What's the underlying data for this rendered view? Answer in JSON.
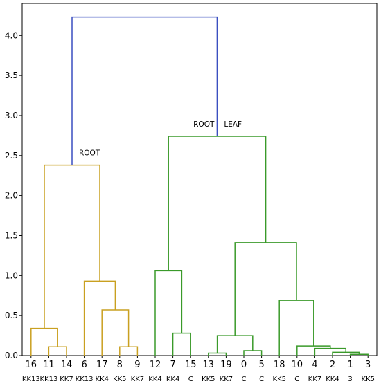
{
  "chart_data": {
    "type": "dendrogram",
    "ylim": [
      0,
      4.4
    ],
    "yticks": [
      "0.0",
      "0.5",
      "1.0",
      "1.5",
      "2.0",
      "2.5",
      "3.0",
      "3.5",
      "4.0"
    ],
    "leaves": [
      {
        "id": "16",
        "group": "KK13"
      },
      {
        "id": "11",
        "group": "KK13"
      },
      {
        "id": "14",
        "group": "KK7"
      },
      {
        "id": "6",
        "group": "KK13"
      },
      {
        "id": "17",
        "group": "KK4"
      },
      {
        "id": "8",
        "group": "KK5"
      },
      {
        "id": "9",
        "group": "KK7"
      },
      {
        "id": "12",
        "group": "KK4"
      },
      {
        "id": "7",
        "group": "KK4"
      },
      {
        "id": "15",
        "group": "C"
      },
      {
        "id": "13",
        "group": "KK5"
      },
      {
        "id": "19",
        "group": "KK7"
      },
      {
        "id": "0",
        "group": "C"
      },
      {
        "id": "5",
        "group": "C"
      },
      {
        "id": "18",
        "group": "KK5"
      },
      {
        "id": "10",
        "group": "C"
      },
      {
        "id": "4",
        "group": "KK7"
      },
      {
        "id": "2",
        "group": "KK4"
      },
      {
        "id": "1",
        "group": "3"
      },
      {
        "id": "3",
        "group": "KK5"
      }
    ],
    "colors": {
      "cluster_left": "#c9a020",
      "cluster_right": "#3a9a2a",
      "root_link": "#3a4fc0"
    },
    "links": [
      {
        "l": 1,
        "r": 2,
        "h": 0.11,
        "c": "cluster_left"
      },
      {
        "l": 0,
        "r": 1.5,
        "h": 0.34,
        "c": "cluster_left"
      },
      {
        "l": 5,
        "r": 6,
        "h": 0.11,
        "c": "cluster_left"
      },
      {
        "l": 4,
        "r": 5.5,
        "h": 0.57,
        "c": "cluster_left"
      },
      {
        "l": 3,
        "r": 4.75,
        "h": 0.93,
        "c": "cluster_left"
      },
      {
        "l": 0.75,
        "r": 3.875,
        "h": 2.38,
        "c": "cluster_left"
      },
      {
        "l": 8,
        "r": 9,
        "h": 0.28,
        "c": "cluster_right"
      },
      {
        "l": 7,
        "r": 8.5,
        "h": 1.06,
        "c": "cluster_right"
      },
      {
        "l": 10,
        "r": 11,
        "h": 0.03,
        "c": "cluster_right"
      },
      {
        "l": 12,
        "r": 13,
        "h": 0.06,
        "c": "cluster_right"
      },
      {
        "l": 10.5,
        "r": 12.5,
        "h": 0.25,
        "c": "cluster_right"
      },
      {
        "l": 18,
        "r": 19,
        "h": 0.015,
        "c": "cluster_right"
      },
      {
        "l": 17,
        "r": 18.5,
        "h": 0.04,
        "c": "cluster_right"
      },
      {
        "l": 16,
        "r": 17.75,
        "h": 0.09,
        "c": "cluster_right"
      },
      {
        "l": 15,
        "r": 16.875,
        "h": 0.12,
        "c": "cluster_right"
      },
      {
        "l": 14,
        "r": 15.9375,
        "h": 0.69,
        "c": "cluster_right"
      },
      {
        "l": 11.5,
        "r": 14.96875,
        "h": 1.41,
        "c": "cluster_right"
      },
      {
        "l": 7.75,
        "r": 13.234375,
        "h": 2.74,
        "c": "cluster_right"
      },
      {
        "l": 2.3125,
        "r": 10.4921875,
        "h": 4.23,
        "c": "root_link"
      }
    ],
    "annotations": [
      {
        "text": "ROOT",
        "x": 2.3125,
        "y": 2.38,
        "pos": "right"
      },
      {
        "text": "ROOT",
        "x": 10.4921875,
        "y": 2.74,
        "pos": "left"
      },
      {
        "text": "LEAF",
        "x": 10.4921875,
        "y": 2.74,
        "pos": "right"
      }
    ]
  }
}
